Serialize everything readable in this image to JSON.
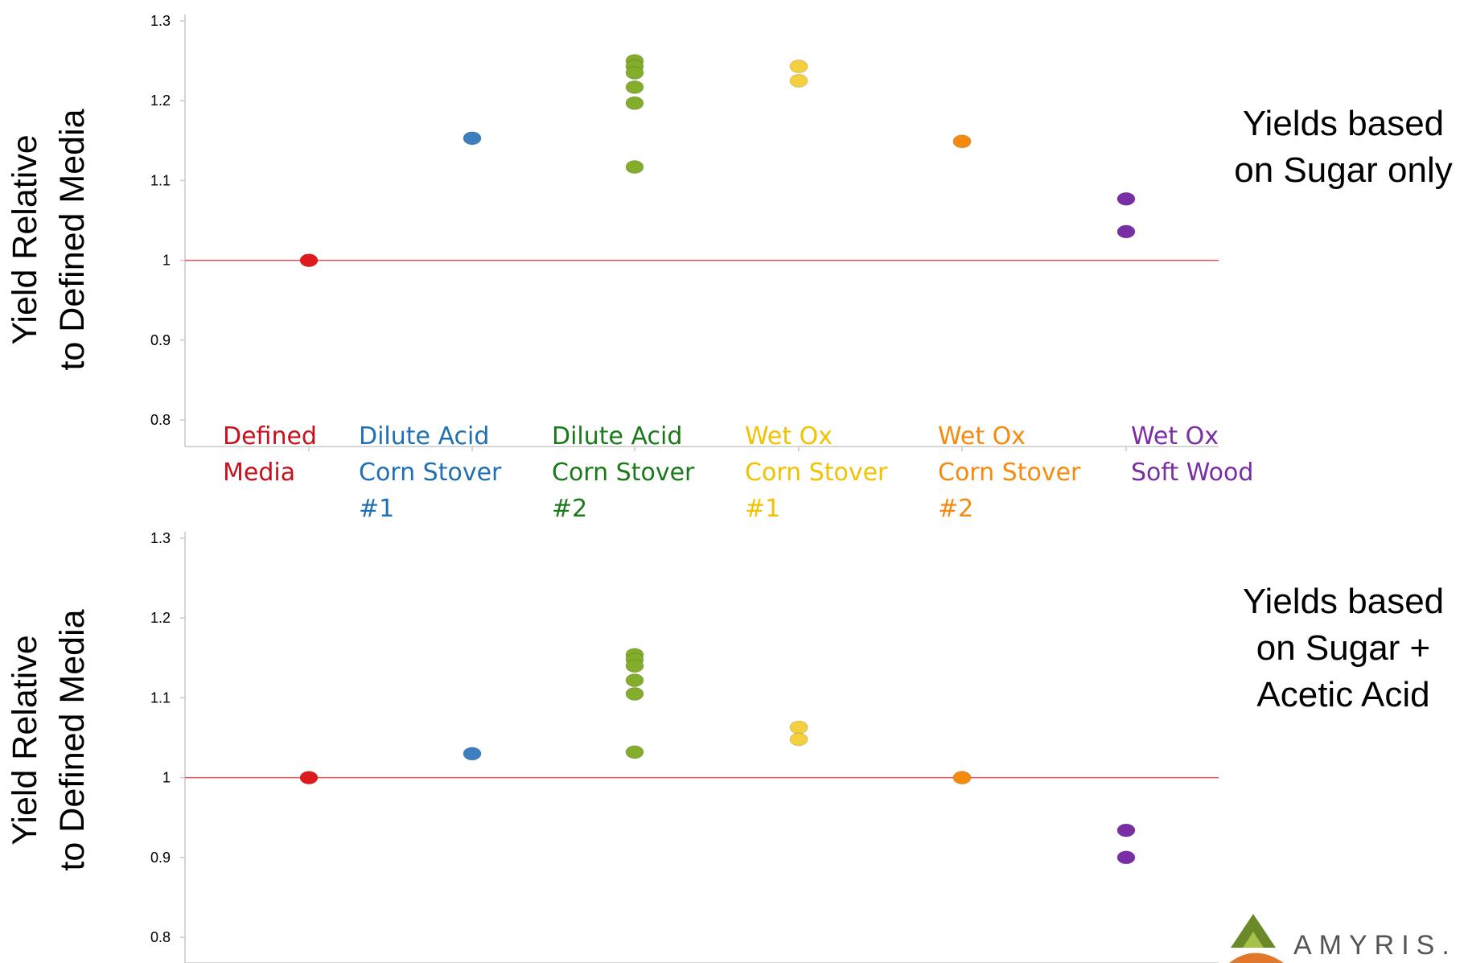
{
  "colors": {
    "defined_media": "#e0191f",
    "dilute_acid_1": "#3d7fbe",
    "dilute_acid_2": "#83ad2b",
    "wet_ox_1": "#f4d03f",
    "wet_ox_2": "#f58a0f",
    "soft_wood": "#7a2ea6",
    "reference_line": "#e05555",
    "axis": "#c8c8c8"
  },
  "category_labels": [
    {
      "lines": [
        "Defined",
        "Media"
      ],
      "color": "#c8101c"
    },
    {
      "lines": [
        "Dilute Acid",
        "Corn Stover",
        "#1"
      ],
      "color": "#1f6fb5"
    },
    {
      "lines": [
        "Dilute Acid",
        "Corn Stover",
        "#2"
      ],
      "color": "#1a7a1a"
    },
    {
      "lines": [
        "Wet Ox",
        "Corn Stover",
        "#1"
      ],
      "color": "#f2c200"
    },
    {
      "lines": [
        "Wet Ox",
        "Corn Stover",
        "#2"
      ],
      "color": "#f58a0f"
    },
    {
      "lines": [
        "Wet Ox",
        "Soft Wood"
      ],
      "color": "#7a2ea6"
    }
  ],
  "logo": {
    "text": "AMYRIS."
  },
  "chart_data": [
    {
      "type": "scatter",
      "title": "",
      "ylabel": "Yield Relative to Defined Media",
      "ylabel_lines": [
        "Yield Relative",
        "to Defined Media"
      ],
      "annotation_lines": [
        "Yields based",
        "on Sugar only"
      ],
      "ylim": [
        0.8,
        1.3
      ],
      "yticks": [
        "0.8",
        "0.9",
        "1",
        "1.1",
        "1.2",
        "1.3"
      ],
      "reference_line": 1.0,
      "categories": [
        "Defined Media",
        "Dilute Acid Corn Stover #1",
        "Dilute Acid Corn Stover #2",
        "Wet Ox Corn Stover #1",
        "Wet Ox Corn Stover #2",
        "Wet Ox Soft Wood"
      ],
      "series": [
        {
          "category": "Defined Media",
          "color": "#e0191f",
          "values": [
            1.0
          ]
        },
        {
          "category": "Dilute Acid Corn Stover #1",
          "color": "#3d7fbe",
          "values": [
            1.153
          ]
        },
        {
          "category": "Dilute Acid Corn Stover #2",
          "color": "#83ad2b",
          "values": [
            1.25,
            1.243,
            1.235,
            1.217,
            1.197,
            1.117
          ]
        },
        {
          "category": "Wet Ox Corn Stover #1",
          "color": "#f4d03f",
          "values": [
            1.243,
            1.225
          ]
        },
        {
          "category": "Wet Ox Corn Stover #2",
          "color": "#f58a0f",
          "values": [
            1.149
          ]
        },
        {
          "category": "Wet Ox Soft Wood",
          "color": "#7a2ea6",
          "values": [
            1.077,
            1.036
          ]
        }
      ]
    },
    {
      "type": "scatter",
      "title": "",
      "ylabel": "Yield Relative to Defined Media",
      "ylabel_lines": [
        "Yield Relative",
        "to Defined Media"
      ],
      "annotation_lines": [
        "Yields based",
        "on Sugar +",
        "Acetic Acid"
      ],
      "ylim": [
        0.8,
        1.3
      ],
      "yticks": [
        "0.8",
        "0.9",
        "1",
        "1.1",
        "1.2",
        "1.3"
      ],
      "reference_line": 1.0,
      "categories": [
        "Defined Media",
        "Dilute Acid Corn Stover #1",
        "Dilute Acid Corn Stover #2",
        "Wet Ox Corn Stover #1",
        "Wet Ox Corn Stover #2",
        "Wet Ox Soft Wood"
      ],
      "series": [
        {
          "category": "Defined Media",
          "color": "#e0191f",
          "values": [
            1.0
          ]
        },
        {
          "category": "Dilute Acid Corn Stover #1",
          "color": "#3d7fbe",
          "values": [
            1.03
          ]
        },
        {
          "category": "Dilute Acid Corn Stover #2",
          "color": "#83ad2b",
          "values": [
            1.154,
            1.148,
            1.14,
            1.122,
            1.105,
            1.032
          ]
        },
        {
          "category": "Wet Ox Corn Stover #1",
          "color": "#f4d03f",
          "values": [
            1.063,
            1.048
          ]
        },
        {
          "category": "Wet Ox Corn Stover #2",
          "color": "#f58a0f",
          "values": [
            1.0
          ]
        },
        {
          "category": "Wet Ox Soft Wood",
          "color": "#7a2ea6",
          "values": [
            0.934,
            0.9
          ]
        }
      ]
    }
  ]
}
